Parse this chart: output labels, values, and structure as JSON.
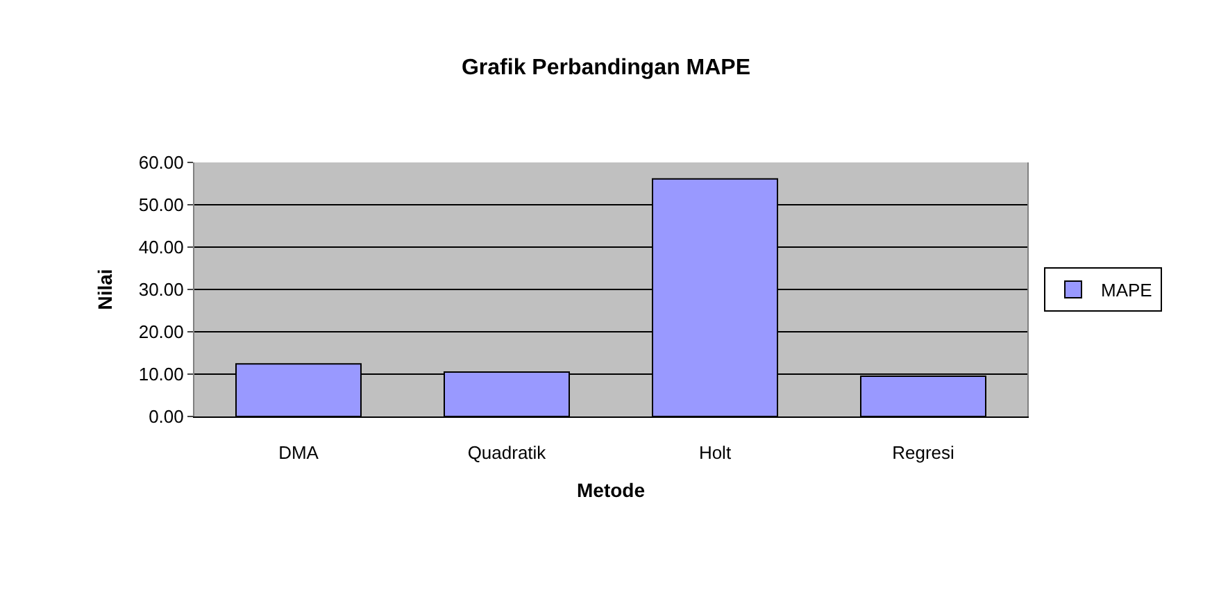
{
  "chart_data": {
    "type": "bar",
    "title": "Grafik Perbandingan MAPE",
    "xlabel": "Metode",
    "ylabel": "Nilai",
    "categories": [
      "DMA",
      "Quadratik",
      "Holt",
      "Regresi"
    ],
    "series": [
      {
        "name": "MAPE",
        "color": "#9999ff",
        "values": [
          12.4,
          10.5,
          56.1,
          9.5
        ]
      }
    ],
    "ylim": [
      0,
      60
    ],
    "yticks": [
      {
        "value": 0,
        "label": "0.00"
      },
      {
        "value": 10,
        "label": "10.00"
      },
      {
        "value": 20,
        "label": "20.00"
      },
      {
        "value": 30,
        "label": "30.00"
      },
      {
        "value": 40,
        "label": "40.00"
      },
      {
        "value": 50,
        "label": "50.00"
      },
      {
        "value": 60,
        "label": "60.00"
      }
    ],
    "grid": "y",
    "legend": "right"
  }
}
